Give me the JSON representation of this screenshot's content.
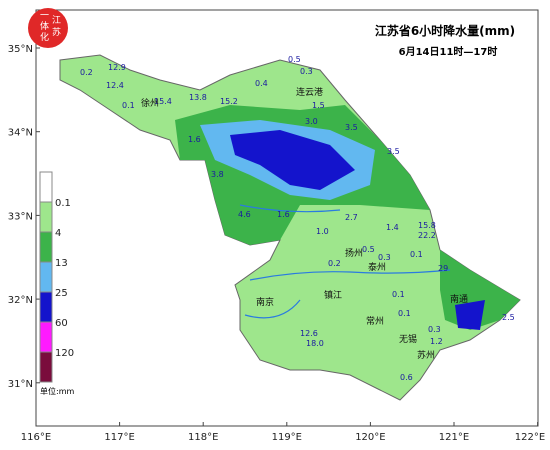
{
  "header": {
    "title": "江苏省6小时降水量(mm)",
    "subtitle": "6月14日11时—17时",
    "logo": [
      "一",
      "体",
      "化",
      "江",
      "苏"
    ]
  },
  "lat_labels": [
    "35°N",
    "34°N",
    "33°N",
    "32°N",
    "31°N"
  ],
  "lon_labels": [
    "116°E",
    "117°E",
    "118°E",
    "119°E",
    "120°E",
    "121°E",
    "122°E"
  ],
  "legend": {
    "items": [
      {
        "label": "0.1",
        "color": "#9ee68c"
      },
      {
        "label": "4",
        "color": "#3cb34a"
      },
      {
        "label": "13",
        "color": "#62b8f0"
      },
      {
        "label": "25",
        "color": "#1414cc"
      },
      {
        "label": "60",
        "color": "#ff1aff"
      },
      {
        "label": "120",
        "color": "#7a0c3c"
      }
    ],
    "top_color": "#ffffff",
    "unit": "单位:mm"
  },
  "cities": [
    "连云港",
    "徐州",
    "扬州",
    "泰州",
    "镇江",
    "南京",
    "常州",
    "无锡",
    "苏州",
    "南通"
  ],
  "stations": [
    "0.2",
    "12.9",
    "12.4",
    "0.1",
    "15.4",
    "13.8",
    "15.2",
    "0.4",
    "0.5",
    "0.3",
    "1.5",
    "3.0",
    "3.5",
    "3.5",
    "1.6",
    "3.8",
    "4.6",
    "1.6",
    "2.7",
    "1.0",
    "1.4",
    "15.8",
    "22.2",
    "0.5",
    "0.3",
    "0.1",
    "0.2",
    "0.1",
    "0.1",
    "0.3",
    "1.2",
    "12.6",
    "18.0",
    "0.6",
    "2.5",
    "29"
  ]
}
